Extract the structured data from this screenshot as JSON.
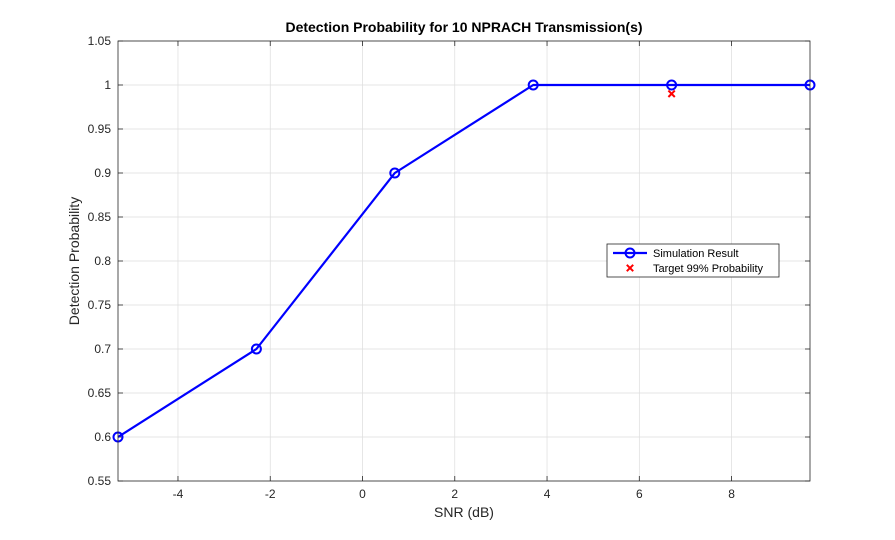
{
  "chart_data": {
    "type": "line",
    "title": "Detection Probability for 10 NPRACH Transmission(s)",
    "xlabel": "SNR (dB)",
    "ylabel": "Detection Probability",
    "xlim": [
      -5.3,
      9.7
    ],
    "ylim": [
      0.55,
      1.05
    ],
    "xticks": [
      -4,
      -2,
      0,
      2,
      4,
      6,
      8
    ],
    "yticks": [
      0.55,
      0.6,
      0.65,
      0.7,
      0.75,
      0.8,
      0.85,
      0.9,
      0.95,
      1,
      1.05
    ],
    "grid": true,
    "legend_position": "center-right",
    "series": [
      {
        "name": "Simulation Result",
        "color": "#0000ff",
        "marker": "circle",
        "x": [
          -5.3,
          -2.3,
          0.7,
          3.7,
          6.7,
          9.7
        ],
        "y": [
          0.6,
          0.7,
          0.9,
          1.0,
          1.0,
          1.0
        ]
      },
      {
        "name": "Target 99% Probability",
        "color": "#ff0000",
        "marker": "x",
        "x": [
          6.7
        ],
        "y": [
          0.99
        ]
      }
    ]
  }
}
